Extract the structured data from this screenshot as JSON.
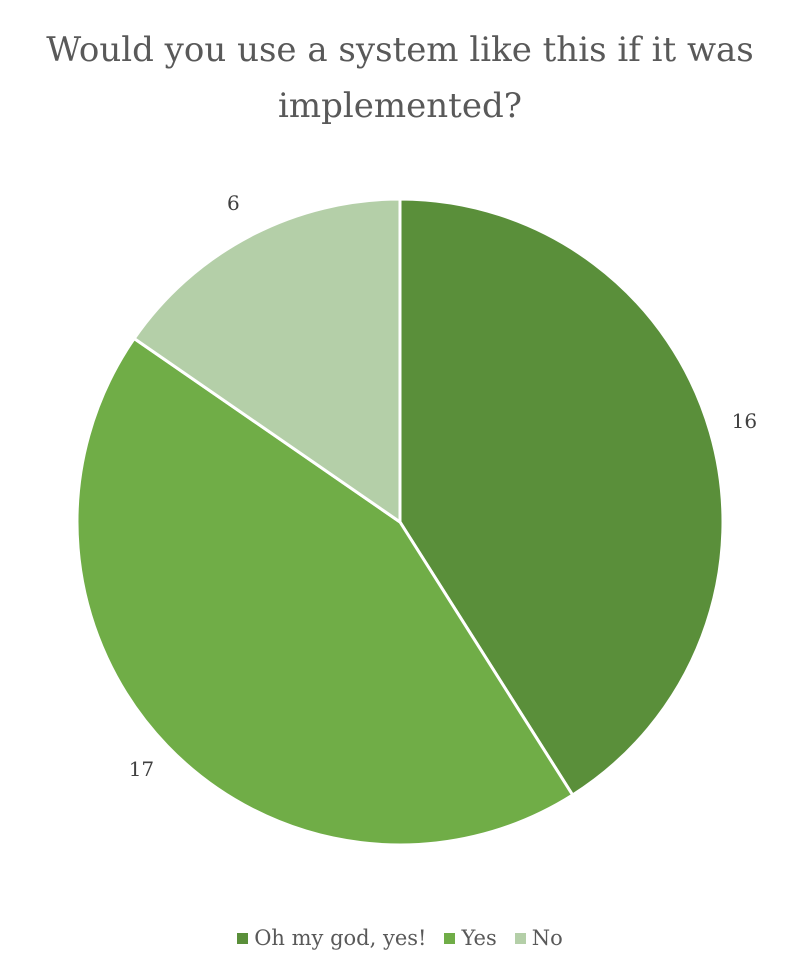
{
  "chart_data": {
    "type": "pie",
    "title": "Would you use a system like this if it was implemented?",
    "categories": [
      "Oh my god, yes!",
      "Yes",
      "No"
    ],
    "values": [
      16,
      17,
      6
    ],
    "colors": [
      "#5a8f3a",
      "#70ad47",
      "#b4cfa8"
    ],
    "data_labels": [
      "16",
      "17",
      "6"
    ],
    "legend": {
      "placement": "bottom",
      "entries": [
        {
          "label": "Oh my god, yes!",
          "color": "#5a8f3a"
        },
        {
          "label": "Yes",
          "color": "#70ad47"
        },
        {
          "label": "No",
          "color": "#b4cfa8"
        }
      ]
    }
  }
}
